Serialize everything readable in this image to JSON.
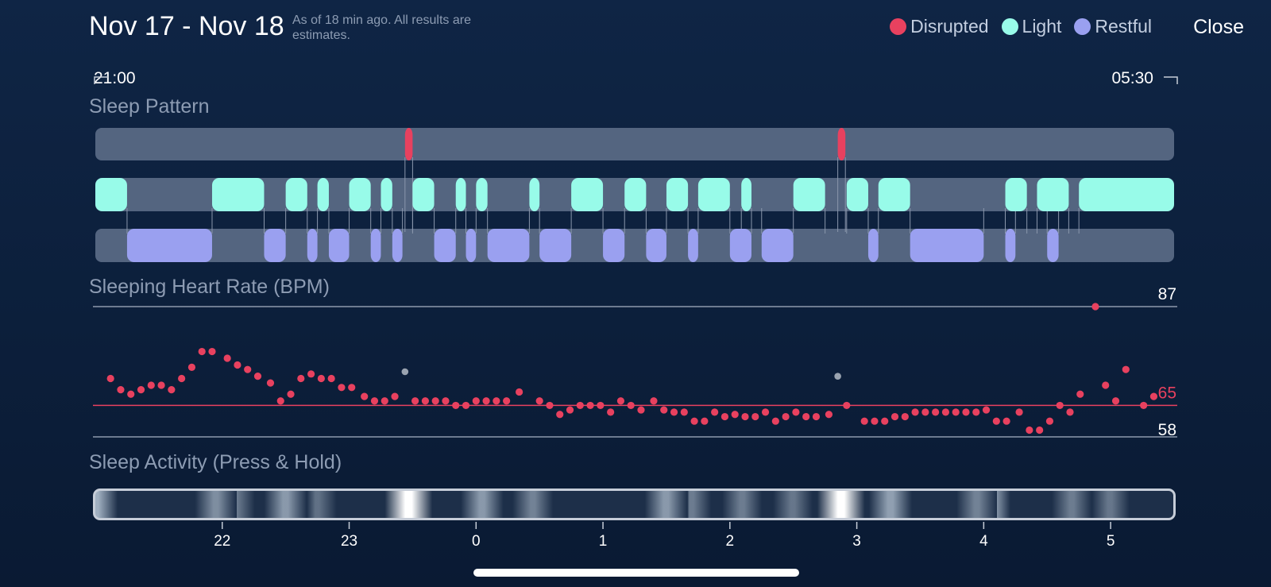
{
  "header": {
    "title": "Nov 17 - Nov 18",
    "subtitle": "As of 18 min ago. All results are estimates.",
    "close_label": "Close"
  },
  "legend": [
    {
      "label": "Disrupted",
      "color": "#e8415f"
    },
    {
      "label": "Light",
      "color": "#98fbe9"
    },
    {
      "label": "Restful",
      "color": "#9aa0f0"
    }
  ],
  "time_range": {
    "start": "21:00",
    "end": "05:30"
  },
  "sections": {
    "sleep_pattern": "Sleep Pattern",
    "heart_rate": "Sleeping Heart Rate (BPM)",
    "activity": "Sleep Activity (Press & Hold)"
  },
  "chart_data": {
    "sleep_pattern": {
      "type": "timeline",
      "x_range": [
        21.0,
        29.5
      ],
      "disrupted": [
        [
          23.44,
          23.5
        ],
        [
          26.85,
          26.91
        ]
      ],
      "light": [
        [
          21.0,
          21.25
        ],
        [
          21.92,
          22.33
        ],
        [
          22.5,
          22.67
        ],
        [
          22.75,
          22.84
        ],
        [
          23.0,
          23.17
        ],
        [
          23.25,
          23.34
        ],
        [
          23.5,
          23.67
        ],
        [
          23.84,
          23.92
        ],
        [
          24.0,
          24.09
        ],
        [
          24.42,
          24.5
        ],
        [
          24.75,
          25.0
        ],
        [
          25.17,
          25.34
        ],
        [
          25.5,
          25.67
        ],
        [
          25.75,
          26.0
        ],
        [
          26.09,
          26.17
        ],
        [
          26.5,
          26.75
        ],
        [
          26.92,
          27.09
        ],
        [
          27.17,
          27.42
        ],
        [
          28.17,
          28.34
        ],
        [
          28.42,
          28.67
        ],
        [
          28.75,
          29.5
        ]
      ],
      "restful": [
        [
          21.25,
          21.92
        ],
        [
          22.33,
          22.5
        ],
        [
          22.67,
          22.75
        ],
        [
          22.84,
          23.0
        ],
        [
          23.17,
          23.25
        ],
        [
          23.34,
          23.42
        ],
        [
          23.67,
          23.84
        ],
        [
          23.92,
          24.0
        ],
        [
          24.09,
          24.42
        ],
        [
          24.5,
          24.75
        ],
        [
          25.0,
          25.17
        ],
        [
          25.34,
          25.5
        ],
        [
          25.67,
          25.75
        ],
        [
          26.0,
          26.17
        ],
        [
          26.25,
          26.5
        ],
        [
          27.09,
          27.17
        ],
        [
          27.42,
          28.0
        ],
        [
          28.17,
          28.25
        ],
        [
          28.5,
          28.59
        ]
      ]
    },
    "heart_rate": {
      "type": "scatter",
      "ylabel": "BPM",
      "max": 87,
      "average": 65,
      "min": 58,
      "x_ticks": [
        "22",
        "23",
        "0",
        "1",
        "2",
        "3",
        "4",
        "5"
      ],
      "x_tick_values": [
        22,
        23,
        24,
        25,
        26,
        27,
        28,
        29
      ],
      "points": [
        [
          21.12,
          71
        ],
        [
          21.2,
          68.5
        ],
        [
          21.28,
          67.5
        ],
        [
          21.36,
          68.5
        ],
        [
          21.44,
          69.5
        ],
        [
          21.52,
          69.5
        ],
        [
          21.6,
          68.5
        ],
        [
          21.68,
          71
        ],
        [
          21.76,
          73.5
        ],
        [
          21.84,
          77
        ],
        [
          21.92,
          77
        ],
        [
          22.04,
          75.5
        ],
        [
          22.12,
          74
        ],
        [
          22.2,
          73
        ],
        [
          22.28,
          71.5
        ],
        [
          22.38,
          70
        ],
        [
          22.46,
          66
        ],
        [
          22.54,
          67.5
        ],
        [
          22.62,
          71
        ],
        [
          22.7,
          72
        ],
        [
          22.78,
          71
        ],
        [
          22.86,
          71
        ],
        [
          22.94,
          69
        ],
        [
          23.02,
          69
        ],
        [
          23.12,
          67
        ],
        [
          23.2,
          66
        ],
        [
          23.28,
          66
        ],
        [
          23.36,
          67
        ],
        [
          23.52,
          66
        ],
        [
          23.6,
          66
        ],
        [
          23.68,
          66
        ],
        [
          23.76,
          66
        ],
        [
          23.84,
          65
        ],
        [
          23.92,
          65
        ],
        [
          24.0,
          66
        ],
        [
          24.08,
          66
        ],
        [
          24.16,
          66
        ],
        [
          24.24,
          66
        ],
        [
          24.34,
          68
        ],
        [
          24.5,
          66
        ],
        [
          24.58,
          65
        ],
        [
          24.66,
          63
        ],
        [
          24.74,
          64
        ],
        [
          24.82,
          65
        ],
        [
          24.9,
          65
        ],
        [
          24.98,
          65
        ],
        [
          25.06,
          63.5
        ],
        [
          25.14,
          66
        ],
        [
          25.22,
          65
        ],
        [
          25.3,
          64
        ],
        [
          25.4,
          66
        ],
        [
          25.48,
          64
        ],
        [
          25.56,
          63.5
        ],
        [
          25.64,
          63.5
        ],
        [
          25.72,
          61.5
        ],
        [
          25.8,
          61.5
        ],
        [
          25.88,
          63.5
        ],
        [
          25.96,
          62.5
        ],
        [
          26.04,
          63
        ],
        [
          26.12,
          62.5
        ],
        [
          26.2,
          62.5
        ],
        [
          26.28,
          63.5
        ],
        [
          26.36,
          61.5
        ],
        [
          26.44,
          62.5
        ],
        [
          26.52,
          63.5
        ],
        [
          26.6,
          62.5
        ],
        [
          26.68,
          62.5
        ],
        [
          26.78,
          63
        ],
        [
          26.92,
          65
        ],
        [
          27.06,
          61.5
        ],
        [
          27.14,
          61.5
        ],
        [
          27.22,
          61.5
        ],
        [
          27.3,
          62.5
        ],
        [
          27.38,
          62.5
        ],
        [
          27.46,
          63.5
        ],
        [
          27.54,
          63.5
        ],
        [
          27.62,
          63.5
        ],
        [
          27.7,
          63.5
        ],
        [
          27.78,
          63.5
        ],
        [
          27.86,
          63.5
        ],
        [
          27.94,
          63.5
        ],
        [
          28.02,
          64
        ],
        [
          28.1,
          61.5
        ],
        [
          28.18,
          61.5
        ],
        [
          28.28,
          63.5
        ],
        [
          28.36,
          59.5
        ],
        [
          28.44,
          59.5
        ],
        [
          28.52,
          61.5
        ],
        [
          28.6,
          65
        ],
        [
          28.68,
          63.5
        ],
        [
          28.76,
          67.5
        ],
        [
          28.88,
          87
        ],
        [
          28.96,
          69.5
        ],
        [
          29.04,
          66
        ],
        [
          29.12,
          73
        ],
        [
          29.26,
          65
        ],
        [
          29.34,
          67
        ]
      ],
      "gray_points": [
        [
          23.44,
          72.5
        ],
        [
          26.85,
          71.5
        ]
      ]
    },
    "activity": {
      "type": "heatmap",
      "x_range": [
        21.0,
        29.5
      ],
      "peaks": [
        [
          21.0,
          0.75
        ],
        [
          21.95,
          0.45
        ],
        [
          22.1,
          0.3
        ],
        [
          22.5,
          0.55
        ],
        [
          22.75,
          0.2
        ],
        [
          23.47,
          1.0
        ],
        [
          24.05,
          0.55
        ],
        [
          24.45,
          0.35
        ],
        [
          25.5,
          0.55
        ],
        [
          25.7,
          0.3
        ],
        [
          26.1,
          0.3
        ],
        [
          26.5,
          0.25
        ],
        [
          26.88,
          1.0
        ],
        [
          27.27,
          0.6
        ],
        [
          27.95,
          0.35
        ],
        [
          28.05,
          0.5
        ],
        [
          28.7,
          0.3
        ],
        [
          29.0,
          0.25
        ]
      ]
    }
  }
}
